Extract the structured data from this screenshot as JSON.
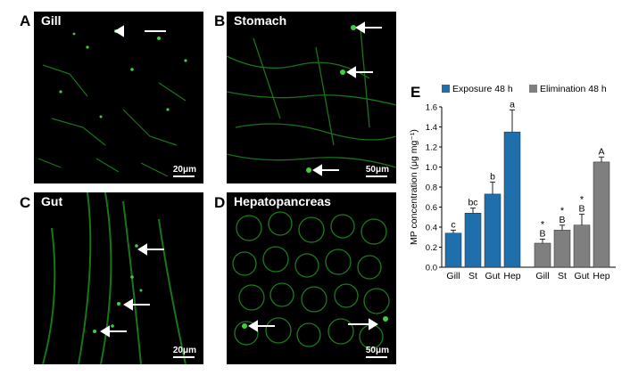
{
  "panels": [
    {
      "letter": "A",
      "title": "Gill",
      "scale": "20μm"
    },
    {
      "letter": "B",
      "title": "Stomach",
      "scale": "50μm"
    },
    {
      "letter": "C",
      "title": "Gut",
      "scale": "20μm"
    },
    {
      "letter": "D",
      "title": "Hepatopancreas",
      "scale": "50μm"
    }
  ],
  "chart_letter": "E",
  "chart_data": {
    "type": "bar",
    "ylabel": "MP concentration (μg mg⁻¹)",
    "ylim": [
      0,
      1.6
    ],
    "yticks": [
      0.0,
      0.2,
      0.4,
      0.6,
      0.8,
      1.0,
      1.2,
      1.4,
      1.6
    ],
    "grid": false,
    "legend": "top",
    "series": [
      {
        "name": "Exposure 48 h",
        "color": "#1f6fad",
        "categories": [
          "Gill",
          "St",
          "Gut",
          "Hep"
        ],
        "values": [
          0.34,
          0.54,
          0.73,
          1.35
        ],
        "errors": [
          0.03,
          0.05,
          0.12,
          0.22
        ],
        "letters": [
          "c",
          "bc",
          "b",
          "a"
        ],
        "stars": [
          "",
          "",
          "",
          ""
        ]
      },
      {
        "name": "Elimination 48 h",
        "color": "#7f7f7f",
        "categories": [
          "Gill",
          "St",
          "Gut",
          "Hep"
        ],
        "values": [
          0.24,
          0.37,
          0.42,
          1.05
        ],
        "errors": [
          0.04,
          0.05,
          0.11,
          0.05
        ],
        "letters": [
          "B",
          "B",
          "B",
          "A"
        ],
        "stars": [
          "*",
          "*",
          "*",
          ""
        ]
      }
    ]
  }
}
